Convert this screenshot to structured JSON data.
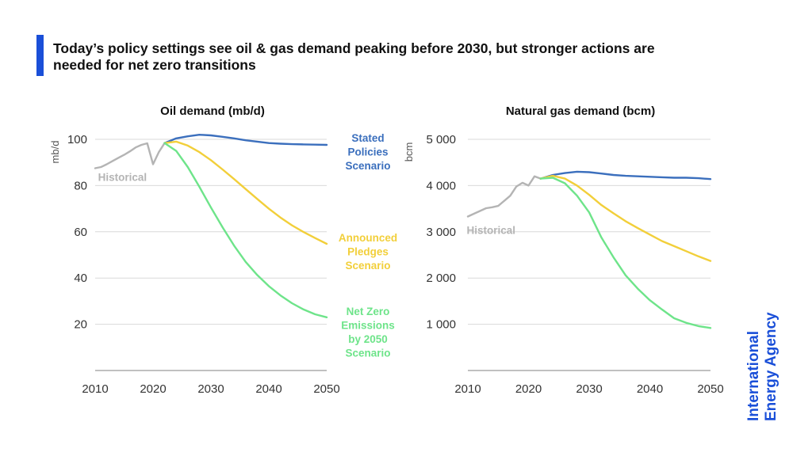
{
  "headline": {
    "line1": "Today’s policy settings see oil & gas demand peaking before 2030, but stronger actions are",
    "line2": "needed for net zero transitions"
  },
  "colors": {
    "accent": "#1a4fd8",
    "historical": "#b4b4b4",
    "stated": "#3b6fbd",
    "announced": "#f2cf3a",
    "netzero": "#6ee48a",
    "grid": "#d9d9d9",
    "logo": "#1a4fd8"
  },
  "logo": {
    "line1": "International",
    "line2": "Energy Agency"
  },
  "labels": {
    "stated": [
      "Stated",
      "Policies",
      "Scenario"
    ],
    "announced": [
      "Announced",
      "Pledges",
      "Scenario"
    ],
    "netzero": [
      "Net Zero",
      "Emissions",
      "by 2050",
      "Scenario"
    ]
  },
  "chart_data": [
    {
      "type": "line",
      "title": "Oil demand (mb/d)",
      "ylabel": "mb/d",
      "xlim": [
        2010,
        2050
      ],
      "ylim": [
        0,
        100
      ],
      "xticks": [
        2010,
        2020,
        2030,
        2040,
        2050
      ],
      "yticks": [
        {
          "value": 20,
          "label": "20"
        },
        {
          "value": 40,
          "label": "40"
        },
        {
          "value": 60,
          "label": "60"
        },
        {
          "value": 80,
          "label": "80"
        },
        {
          "value": 100,
          "label": "100"
        }
      ],
      "series": [
        {
          "name": "Historical",
          "colorKey": "historical",
          "x": [
            2010,
            2011,
            2012,
            2013,
            2014,
            2015,
            2016,
            2017,
            2018,
            2019,
            2020,
            2021,
            2022
          ],
          "y": [
            87.5,
            88,
            89.2,
            90.6,
            92,
            93.3,
            94.8,
            96.5,
            97.6,
            98.3,
            89.2,
            94.5,
            98.4
          ]
        },
        {
          "name": "Stated Policies Scenario",
          "colorKey": "stated",
          "x": [
            2022,
            2024,
            2026,
            2028,
            2030,
            2032,
            2034,
            2036,
            2038,
            2040,
            2042,
            2044,
            2046,
            2048,
            2050
          ],
          "y": [
            98.4,
            100.4,
            101.3,
            102,
            101.7,
            101.1,
            100.4,
            99.6,
            99,
            98.4,
            98.1,
            97.9,
            97.8,
            97.7,
            97.6
          ]
        },
        {
          "name": "Announced Pledges Scenario",
          "colorKey": "announced",
          "x": [
            2022,
            2024,
            2026,
            2028,
            2030,
            2032,
            2034,
            2036,
            2038,
            2040,
            2042,
            2044,
            2046,
            2048,
            2050
          ],
          "y": [
            98.4,
            99,
            97.3,
            94.5,
            91,
            87,
            82.8,
            78.5,
            74.2,
            70,
            66.2,
            62.8,
            59.9,
            57.3,
            54.8
          ]
        },
        {
          "name": "Net Zero Emissions by 2050 Scenario",
          "colorKey": "netzero",
          "x": [
            2022,
            2024,
            2026,
            2028,
            2030,
            2032,
            2034,
            2036,
            2038,
            2040,
            2042,
            2044,
            2046,
            2048,
            2050
          ],
          "y": [
            98.4,
            95,
            88,
            79.5,
            70.5,
            62,
            54,
            47,
            41.3,
            36.5,
            32.5,
            29.1,
            26.4,
            24.3,
            23
          ]
        }
      ],
      "annotation": {
        "text": "Historical",
        "x": 2010.5,
        "y": 82
      }
    },
    {
      "type": "line",
      "title": "Natural gas demand (bcm)",
      "ylabel": "bcm",
      "xlim": [
        2010,
        2050
      ],
      "ylim": [
        0,
        5000
      ],
      "xticks": [
        2010,
        2020,
        2030,
        2040,
        2050
      ],
      "yticks": [
        {
          "value": 1000,
          "label": "1 000"
        },
        {
          "value": 2000,
          "label": "2 000"
        },
        {
          "value": 3000,
          "label": "3 000"
        },
        {
          "value": 4000,
          "label": "4 000"
        },
        {
          "value": 5000,
          "label": "5 000"
        }
      ],
      "series": [
        {
          "name": "Historical",
          "colorKey": "historical",
          "x": [
            2010,
            2011,
            2012,
            2013,
            2014,
            2015,
            2016,
            2017,
            2018,
            2019,
            2020,
            2021,
            2022
          ],
          "y": [
            3330,
            3390,
            3450,
            3510,
            3530,
            3560,
            3670,
            3780,
            3980,
            4060,
            4000,
            4200,
            4150
          ]
        },
        {
          "name": "Stated Policies Scenario",
          "colorKey": "stated",
          "x": [
            2022,
            2024,
            2026,
            2028,
            2030,
            2032,
            2034,
            2036,
            2038,
            2040,
            2042,
            2044,
            2046,
            2048,
            2050
          ],
          "y": [
            4150,
            4230,
            4270,
            4300,
            4290,
            4260,
            4230,
            4210,
            4200,
            4190,
            4180,
            4170,
            4170,
            4160,
            4140
          ]
        },
        {
          "name": "Announced Pledges Scenario",
          "colorKey": "announced",
          "x": [
            2022,
            2024,
            2026,
            2028,
            2030,
            2032,
            2034,
            2036,
            2038,
            2040,
            2042,
            2044,
            2046,
            2048,
            2050
          ],
          "y": [
            4150,
            4210,
            4150,
            4000,
            3800,
            3580,
            3400,
            3230,
            3080,
            2940,
            2800,
            2690,
            2580,
            2470,
            2370
          ]
        },
        {
          "name": "Net Zero Emissions by 2050 Scenario",
          "colorKey": "netzero",
          "x": [
            2022,
            2024,
            2026,
            2028,
            2030,
            2032,
            2034,
            2036,
            2038,
            2040,
            2042,
            2044,
            2046,
            2048,
            2050
          ],
          "y": [
            4150,
            4170,
            4050,
            3780,
            3420,
            2880,
            2450,
            2060,
            1770,
            1520,
            1320,
            1130,
            1030,
            960,
            920
          ]
        }
      ],
      "annotation": {
        "text": "Historical",
        "x": 2009.8,
        "y": 2950
      }
    }
  ]
}
